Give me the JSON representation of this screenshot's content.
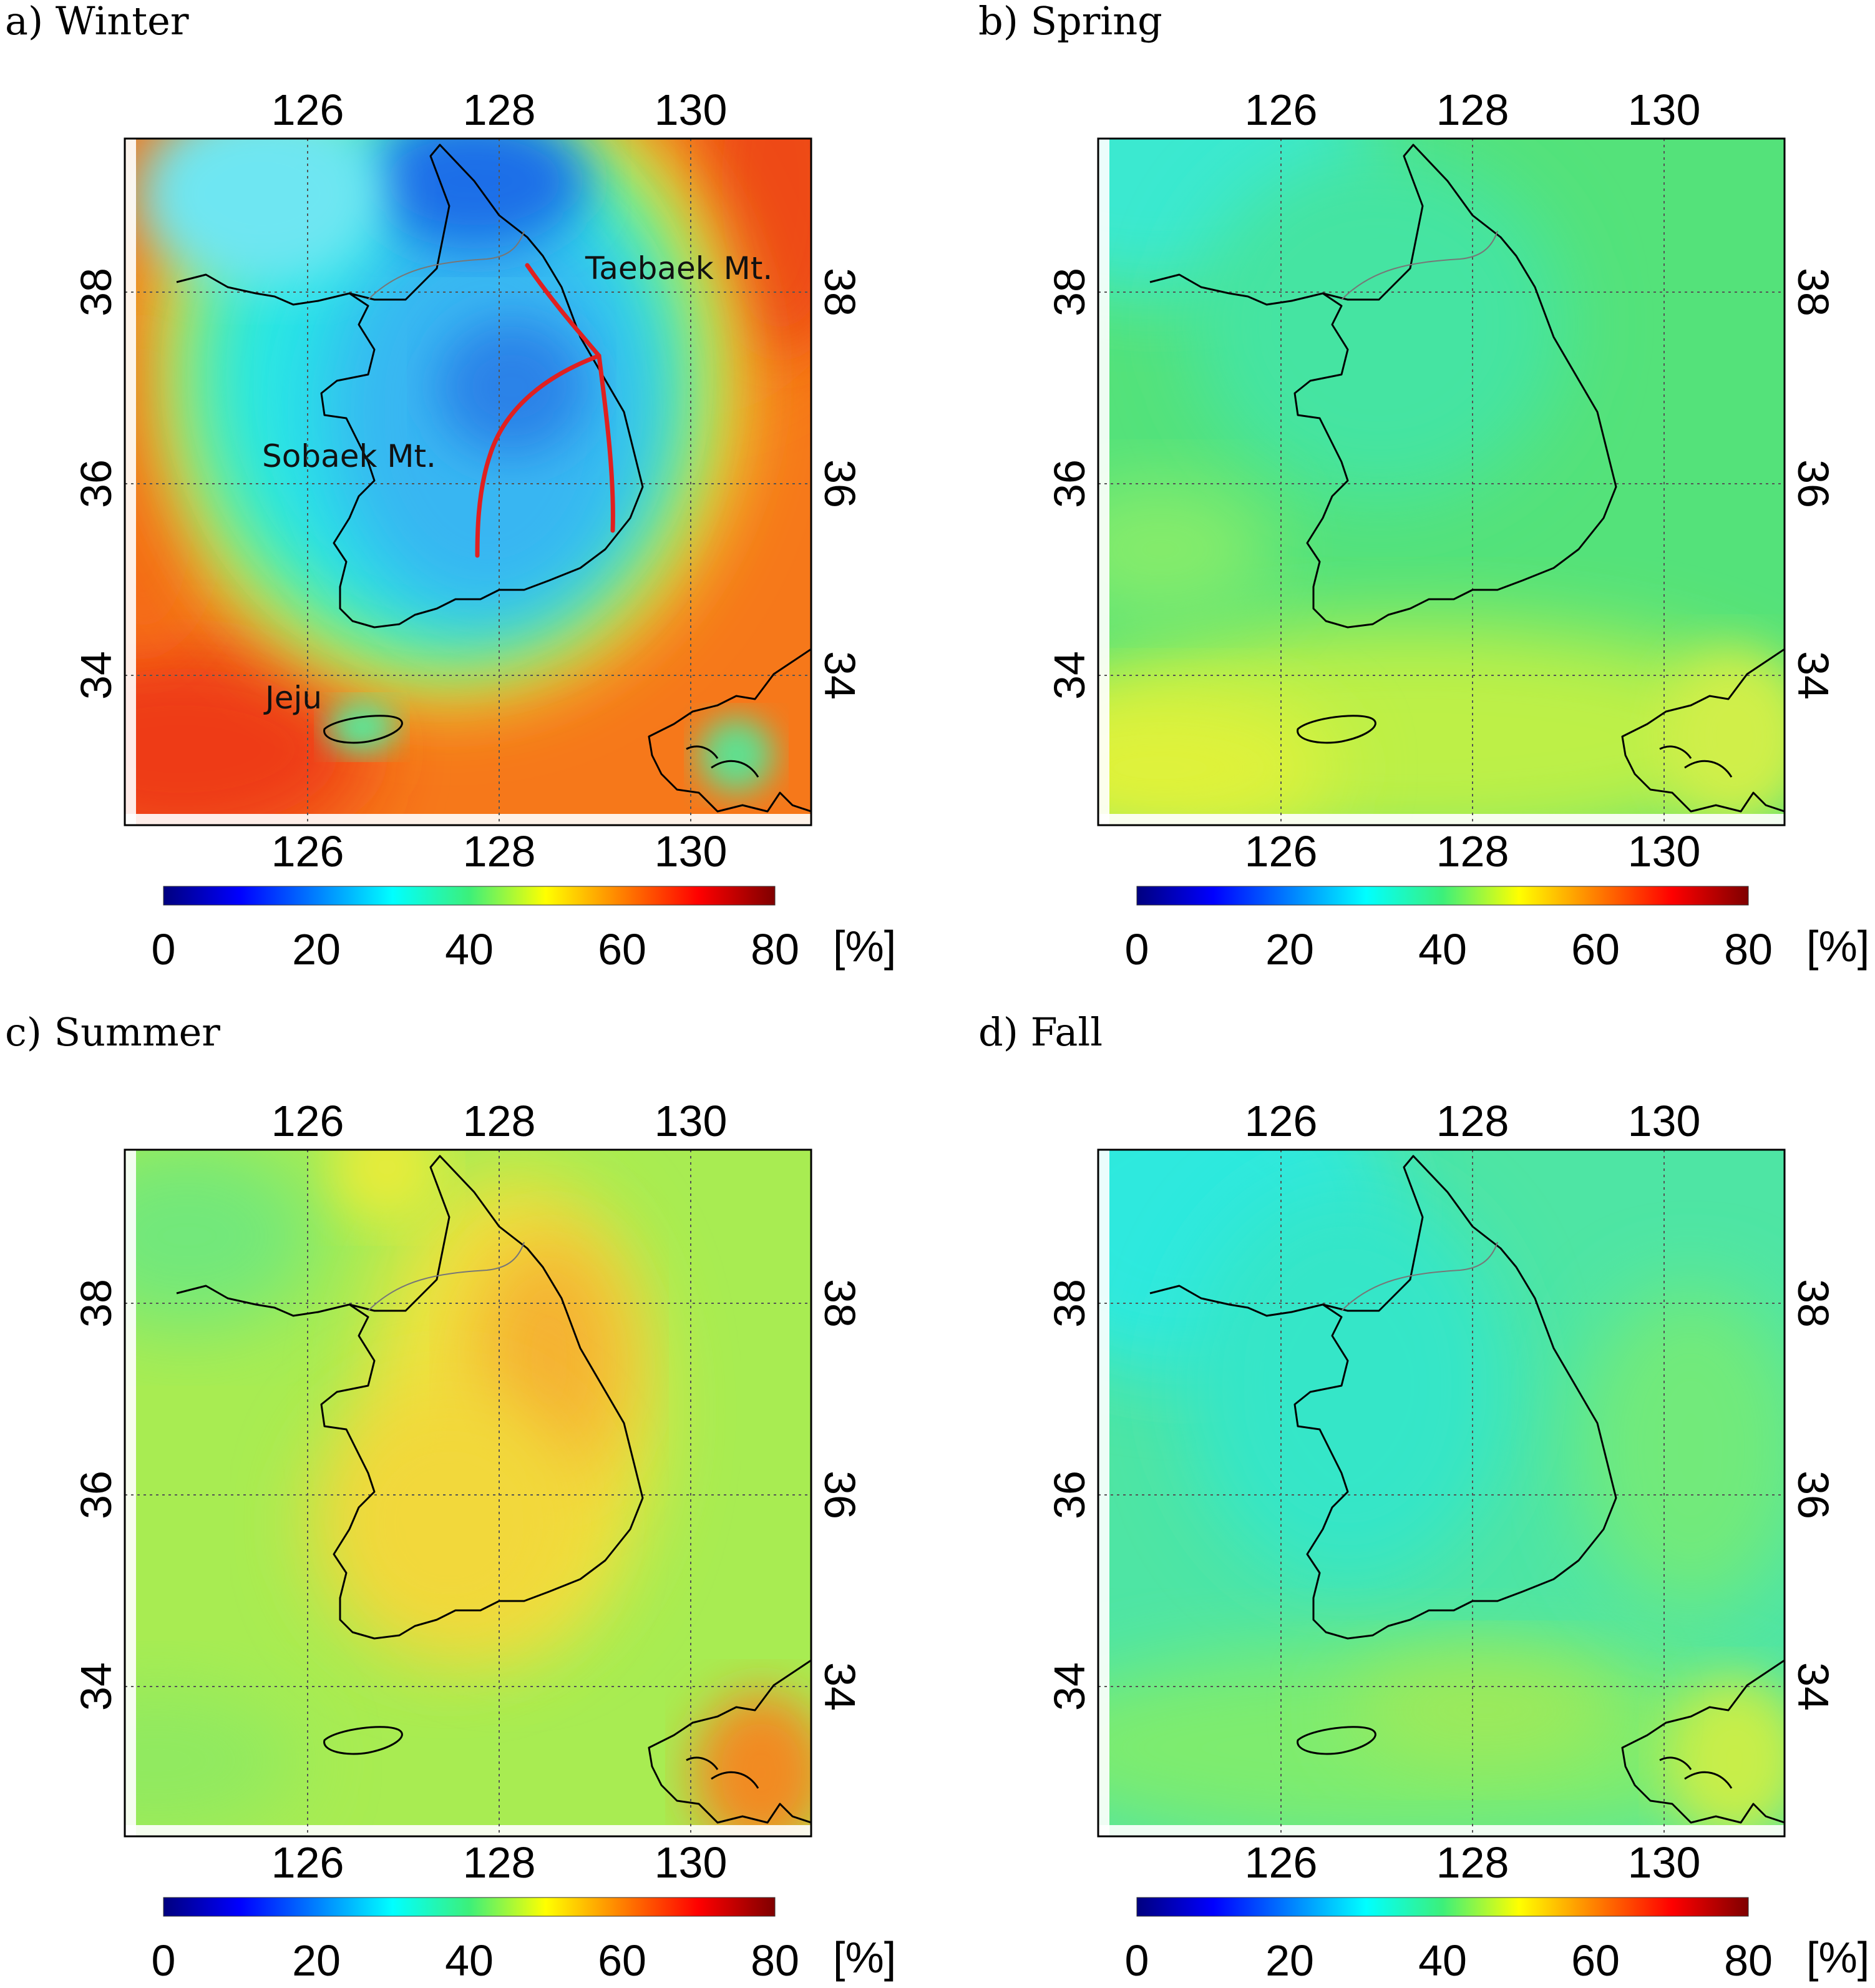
{
  "figure": {
    "panels": [
      {
        "id": "a",
        "title": "a) Winter",
        "season": "Winter",
        "field": "winter",
        "annotations": [
          "Taebaek Mt.",
          "Sobaek Mt.",
          "Jeju"
        ]
      },
      {
        "id": "b",
        "title": "b) Spring",
        "season": "Spring",
        "field": "spring",
        "annotations": []
      },
      {
        "id": "c",
        "title": "c) Summer",
        "season": "Summer",
        "field": "summer",
        "annotations": []
      },
      {
        "id": "d",
        "title": "d) Fall",
        "season": "Fall",
        "field": "fall",
        "annotations": []
      }
    ],
    "lon_ticks": [
      "126",
      "128",
      "130"
    ],
    "lat_ticks": [
      "38",
      "36",
      "34"
    ],
    "colorbar": {
      "ticks": [
        "0",
        "20",
        "40",
        "60",
        "80"
      ],
      "unit": "[%]",
      "range": [
        0,
        80
      ],
      "colormap": "jet"
    },
    "colors": {
      "ridge_line": "#e02020",
      "coastline": "#000000",
      "gridline": "#555555"
    }
  }
}
